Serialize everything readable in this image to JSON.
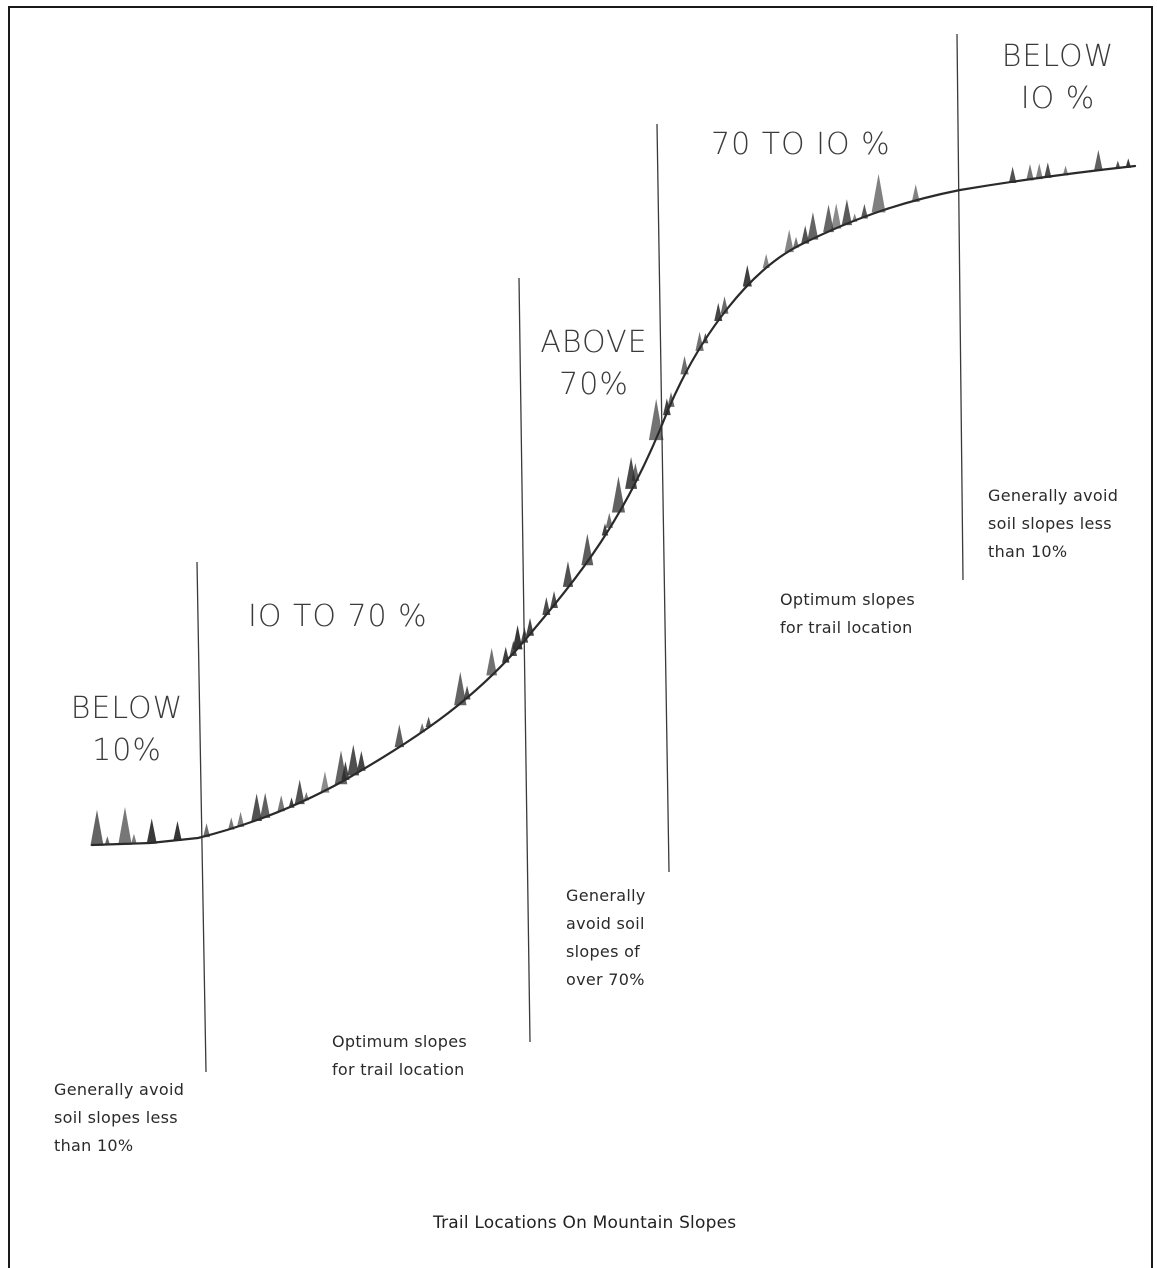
{
  "slope_zones": [
    {
      "range": "BELOW\n10%",
      "note": "Generally avoid\nsoil slopes less\nthan 10%"
    },
    {
      "range": "IO TO 70 %",
      "note": "Optimum slopes\nfor trail location"
    },
    {
      "range": "ABOVE\n70%",
      "note": "Generally\navoid soil\nslopes of\nover 70%"
    },
    {
      "range": "70 TO IO %",
      "note": "Optimum slopes\nfor trail location"
    },
    {
      "range": "BELOW\nIO %",
      "note": "Generally avoid\nsoil slopes less\nthan 10%"
    }
  ],
  "caption": "Trail Locations On Mountain Slopes",
  "colors": {
    "ink": "#2a2a2a",
    "paper": "#ffffff"
  }
}
